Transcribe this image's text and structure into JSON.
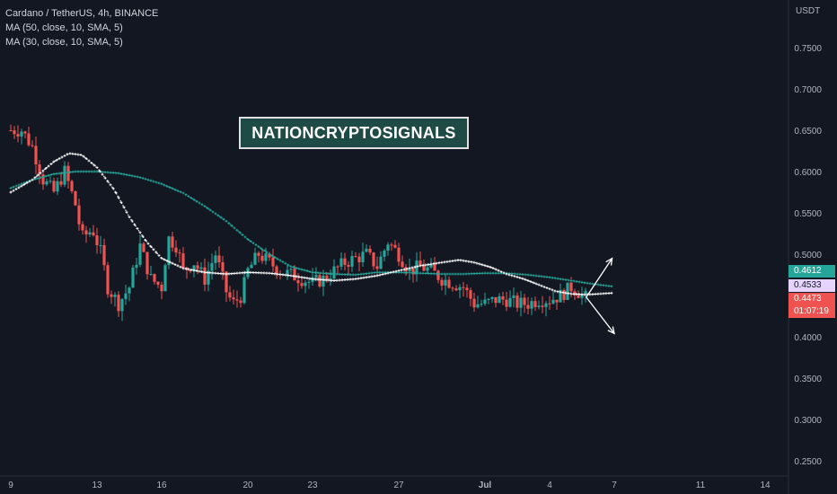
{
  "header": {
    "symbol_line": "Cardano / TetherUS, 4h, BINANCE",
    "ma_lines": [
      "MA (50, close, 10, SMA, 5)",
      "MA (30, close, 10, SMA, 5)"
    ],
    "currency": "USDT"
  },
  "watermark": "NATIONCRYPTOSIGNALS",
  "price_tags": {
    "ma_green": "0.4612",
    "ma_white": "0.4533",
    "last_price": "0.4473",
    "countdown": "01:07:19"
  },
  "colors": {
    "background": "#131722",
    "up": "#26a69a",
    "down": "#ef5350",
    "ma_green": "#26a69a",
    "ma_white": "#ffffff",
    "watermark_bg": "#1e4b45"
  },
  "chart_data": {
    "type": "candlestick",
    "y_ticks": [
      "0.7500",
      "0.7000",
      "0.6500",
      "0.6000",
      "0.5500",
      "0.5000",
      "0.4500",
      "0.4000",
      "0.3500",
      "0.3000",
      "0.2500"
    ],
    "ylim": [
      0.23,
      0.81
    ],
    "x_ticks": [
      {
        "label": "9",
        "day": 9
      },
      {
        "label": "13",
        "day": 13
      },
      {
        "label": "16",
        "day": 16
      },
      {
        "label": "20",
        "day": 20
      },
      {
        "label": "23",
        "day": 23
      },
      {
        "label": "27",
        "day": 27
      },
      {
        "label": "Jul",
        "day": 31
      },
      {
        "label": "4",
        "day": 34
      },
      {
        "label": "7",
        "day": 37
      },
      {
        "label": "11",
        "day": 41
      },
      {
        "label": "14",
        "day": 44
      }
    ],
    "price_path": [
      [
        9,
        0.65
      ],
      [
        9.5,
        0.65
      ],
      [
        10,
        0.63
      ],
      [
        10.5,
        0.59
      ],
      [
        11,
        0.575
      ],
      [
        11.5,
        0.6
      ],
      [
        12,
        0.56
      ],
      [
        12.3,
        0.52
      ],
      [
        12.8,
        0.53
      ],
      [
        13.2,
        0.5
      ],
      [
        13.5,
        0.46
      ],
      [
        14,
        0.44
      ],
      [
        14.5,
        0.46
      ],
      [
        15,
        0.51
      ],
      [
        15.5,
        0.47
      ],
      [
        16,
        0.46
      ],
      [
        16.3,
        0.52
      ],
      [
        16.7,
        0.51
      ],
      [
        17,
        0.48
      ],
      [
        17.5,
        0.49
      ],
      [
        18,
        0.47
      ],
      [
        18.5,
        0.5
      ],
      [
        19,
        0.455
      ],
      [
        19.3,
        0.44
      ],
      [
        19.7,
        0.45
      ],
      [
        20,
        0.48
      ],
      [
        20.5,
        0.5
      ],
      [
        21,
        0.49
      ],
      [
        21.5,
        0.48
      ],
      [
        22,
        0.475
      ],
      [
        22.5,
        0.47
      ],
      [
        23,
        0.465
      ],
      [
        23.5,
        0.47
      ],
      [
        24,
        0.48
      ],
      [
        24.5,
        0.49
      ],
      [
        25,
        0.495
      ],
      [
        25.5,
        0.5
      ],
      [
        26,
        0.485
      ],
      [
        26.5,
        0.515
      ],
      [
        27,
        0.5
      ],
      [
        27.5,
        0.48
      ],
      [
        28,
        0.485
      ],
      [
        28.5,
        0.48
      ],
      [
        29,
        0.47
      ],
      [
        29.5,
        0.465
      ],
      [
        30,
        0.46
      ],
      [
        30.5,
        0.44
      ],
      [
        31,
        0.44
      ],
      [
        31.5,
        0.445
      ],
      [
        32,
        0.445
      ],
      [
        32.5,
        0.44
      ],
      [
        33,
        0.44
      ],
      [
        33.5,
        0.445
      ],
      [
        34,
        0.445
      ],
      [
        34.5,
        0.45
      ],
      [
        35,
        0.46
      ],
      [
        35.3,
        0.455
      ],
      [
        35.7,
        0.447
      ]
    ],
    "ma_green_path": [
      [
        9,
        0.58
      ],
      [
        10,
        0.59
      ],
      [
        11,
        0.597
      ],
      [
        12,
        0.6
      ],
      [
        13,
        0.6
      ],
      [
        14,
        0.598
      ],
      [
        15,
        0.593
      ],
      [
        16,
        0.585
      ],
      [
        17,
        0.574
      ],
      [
        18,
        0.558
      ],
      [
        19,
        0.54
      ],
      [
        20,
        0.518
      ],
      [
        21,
        0.5
      ],
      [
        22,
        0.485
      ],
      [
        23,
        0.478
      ],
      [
        24,
        0.476
      ],
      [
        25,
        0.475
      ],
      [
        26,
        0.478
      ],
      [
        27,
        0.478
      ],
      [
        28,
        0.477
      ],
      [
        29,
        0.476
      ],
      [
        30,
        0.476
      ],
      [
        31,
        0.477
      ],
      [
        32,
        0.477
      ],
      [
        33,
        0.475
      ],
      [
        34,
        0.472
      ],
      [
        35,
        0.468
      ],
      [
        36,
        0.464
      ],
      [
        36.9,
        0.461
      ]
    ],
    "ma_white_path": [
      [
        9,
        0.575
      ],
      [
        10,
        0.59
      ],
      [
        11,
        0.612
      ],
      [
        11.7,
        0.622
      ],
      [
        12.3,
        0.62
      ],
      [
        13,
        0.605
      ],
      [
        13.8,
        0.578
      ],
      [
        14.5,
        0.545
      ],
      [
        15.3,
        0.515
      ],
      [
        16,
        0.495
      ],
      [
        17,
        0.483
      ],
      [
        18,
        0.478
      ],
      [
        19,
        0.476
      ],
      [
        20,
        0.478
      ],
      [
        21,
        0.477
      ],
      [
        22,
        0.474
      ],
      [
        23,
        0.47
      ],
      [
        24,
        0.468
      ],
      [
        25,
        0.47
      ],
      [
        26,
        0.474
      ],
      [
        27,
        0.48
      ],
      [
        28,
        0.486
      ],
      [
        29,
        0.49
      ],
      [
        29.8,
        0.493
      ],
      [
        30.5,
        0.49
      ],
      [
        31.3,
        0.484
      ],
      [
        32,
        0.476
      ],
      [
        32.8,
        0.47
      ],
      [
        33.5,
        0.463
      ],
      [
        34.3,
        0.455
      ],
      [
        35,
        0.452
      ],
      [
        35.7,
        0.451
      ],
      [
        36.3,
        0.452
      ],
      [
        36.9,
        0.453
      ]
    ],
    "arrows": [
      {
        "from": [
          35.7,
          0.448
        ],
        "to": [
          36.9,
          0.495
        ]
      },
      {
        "from": [
          35.7,
          0.448
        ],
        "to": [
          37.0,
          0.404
        ]
      }
    ]
  }
}
